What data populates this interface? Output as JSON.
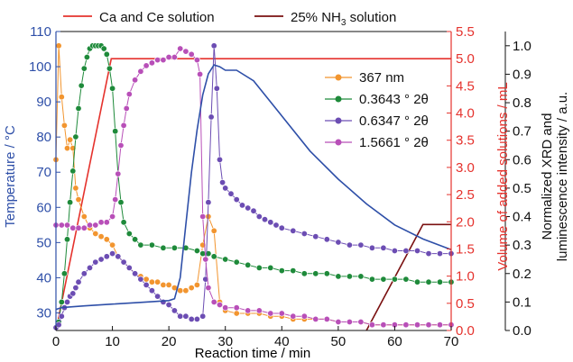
{
  "chart_data": {
    "type": "line",
    "xlabel": "Reaction time / min",
    "ylabel_left": "Temperature / °C",
    "ylabel_right1": "Volume of added solutions / mL",
    "ylabel_right2_line1": "Normalized XRD and",
    "ylabel_right2_line2": "luminescence intensity / a.u.",
    "xlim": [
      0,
      70
    ],
    "ylim_left": [
      25,
      110
    ],
    "ylim_right1": [
      0,
      5.5
    ],
    "ylim_right2": [
      0,
      1.05
    ],
    "x_ticks": [
      0,
      10,
      20,
      30,
      40,
      50,
      60,
      70
    ],
    "y_left_ticks": [
      30,
      40,
      50,
      60,
      70,
      80,
      90,
      100,
      110
    ],
    "y_right1_ticks": [
      "0.0",
      "0.5",
      "1.0",
      "1.5",
      "2.0",
      "2.5",
      "3.0",
      "3.5",
      "4.0",
      "4.5",
      "5.0",
      "5.5"
    ],
    "y_right2_ticks": [
      "0.0",
      "0.1",
      "0.2",
      "0.3",
      "0.4",
      "0.5",
      "0.6",
      "0.7",
      "0.8",
      "0.9",
      "1.0"
    ],
    "colors": {
      "temperature": "#2e4fa8",
      "volume_axis": "#e5322d",
      "ca_ce": "#e5322d",
      "nh3": "#7a1010",
      "s367": "#f2952f",
      "s03643": "#1e8a3a",
      "s06347": "#6c4db3",
      "s15661": "#b84fb8"
    },
    "top_legend": [
      {
        "label": "Ca and Ce solution",
        "color": "#e5322d"
      },
      {
        "label": "25% NH",
        "sub": "3",
        "suffix": " solution",
        "color": "#7a1010"
      }
    ],
    "marker_legend": [
      {
        "label": "367 nm",
        "color": "#f2952f"
      },
      {
        "label": "0.3643 ° 2θ",
        "color": "#1e8a3a"
      },
      {
        "label": "0.6347 ° 2θ",
        "color": "#6c4db3"
      },
      {
        "label": "1.5661 ° 2θ",
        "color": "#b84fb8"
      }
    ],
    "temperature": {
      "x": [
        0,
        1,
        5,
        10,
        15,
        20,
        21,
        22,
        23,
        24,
        25,
        26,
        27,
        28,
        29,
        30,
        32,
        35,
        40,
        45,
        50,
        55,
        60,
        65,
        70
      ],
      "y": [
        31,
        31.5,
        32,
        32.5,
        33,
        33.5,
        34,
        40,
        55,
        70,
        82,
        92,
        98,
        100.5,
        100,
        99,
        99,
        96,
        86,
        76,
        68,
        61,
        55,
        51,
        48
      ]
    },
    "ca_ce_volume": {
      "x": [
        0,
        9.8,
        70
      ],
      "y": [
        0,
        5.0,
        5.0
      ]
    },
    "nh3_volume": {
      "x": [
        55,
        65,
        70
      ],
      "y": [
        0,
        1.95,
        1.95
      ]
    },
    "series": [
      {
        "name": "367 nm",
        "x": [
          0,
          0.5,
          1,
          1.5,
          2,
          2.5,
          3,
          3.5,
          4,
          5,
          6,
          7,
          8,
          9,
          10,
          11,
          12,
          13,
          14,
          15,
          16,
          17,
          18,
          19,
          20,
          21,
          22,
          23,
          24,
          25,
          26,
          27,
          28,
          29,
          30,
          32,
          34,
          36,
          38,
          40,
          42,
          44,
          46,
          48,
          50,
          52,
          54,
          56,
          58,
          60,
          62,
          64,
          66,
          68,
          70
        ],
        "y": [
          0.6,
          1.0,
          0.82,
          0.72,
          0.64,
          0.67,
          0.64,
          0.5,
          0.46,
          0.4,
          0.36,
          0.34,
          0.33,
          0.32,
          0.3,
          0.26,
          0.24,
          0.22,
          0.2,
          0.19,
          0.18,
          0.17,
          0.17,
          0.16,
          0.16,
          0.15,
          0.14,
          0.14,
          0.15,
          0.16,
          0.3,
          0.4,
          0.35,
          0.1,
          0.07,
          0.06,
          0.06,
          0.06,
          0.05,
          0.05,
          0.04,
          0.04,
          0.04,
          0.04,
          0.03,
          0.03,
          0.03,
          0.02,
          0.02,
          0.02,
          0.02,
          0.02,
          0.02,
          0.02,
          0.02
        ]
      },
      {
        "name": "0.3643 ° 2θ",
        "x": [
          0,
          0.5,
          1,
          1.5,
          2,
          2.5,
          3,
          3.5,
          4,
          4.5,
          5,
          5.5,
          6,
          6.5,
          7,
          7.5,
          8,
          8.5,
          9,
          9.5,
          10,
          10.5,
          11,
          11.5,
          12,
          13,
          14,
          15,
          17,
          19,
          21,
          23,
          25,
          26,
          27,
          28,
          30,
          32,
          34,
          36,
          38,
          40,
          42,
          44,
          46,
          48,
          50,
          52,
          54,
          56,
          58,
          60,
          62,
          64,
          66,
          68,
          70
        ],
        "y": [
          0.01,
          0.03,
          0.1,
          0.2,
          0.32,
          0.45,
          0.56,
          0.68,
          0.78,
          0.86,
          0.92,
          0.96,
          0.99,
          1.0,
          1.0,
          1.0,
          1.0,
          0.99,
          0.97,
          0.92,
          0.85,
          0.7,
          0.55,
          0.45,
          0.38,
          0.34,
          0.32,
          0.3,
          0.3,
          0.29,
          0.29,
          0.29,
          0.28,
          0.27,
          0.27,
          0.26,
          0.25,
          0.24,
          0.23,
          0.22,
          0.22,
          0.21,
          0.21,
          0.2,
          0.2,
          0.2,
          0.19,
          0.19,
          0.19,
          0.18,
          0.18,
          0.18,
          0.18,
          0.17,
          0.17,
          0.17,
          0.17
        ]
      },
      {
        "name": "0.6347 ° 2θ",
        "x": [
          0,
          0.5,
          1,
          1.5,
          2,
          2.5,
          3,
          3.5,
          4,
          5,
          6,
          7,
          8,
          9,
          10,
          11,
          12,
          13,
          14,
          15,
          16,
          17,
          18,
          19,
          20,
          21,
          22,
          23,
          24,
          25,
          26,
          26.5,
          27,
          27.5,
          28,
          28.5,
          29,
          29.5,
          30,
          31,
          32,
          33,
          34,
          35,
          36,
          37,
          38,
          39,
          40,
          42,
          44,
          46,
          48,
          50,
          52,
          54,
          56,
          58,
          60,
          62,
          64,
          66,
          68,
          70
        ],
        "y": [
          0.01,
          0.02,
          0.05,
          0.08,
          0.1,
          0.12,
          0.13,
          0.15,
          0.17,
          0.2,
          0.22,
          0.24,
          0.25,
          0.26,
          0.27,
          0.26,
          0.24,
          0.22,
          0.2,
          0.18,
          0.16,
          0.14,
          0.12,
          0.1,
          0.09,
          0.07,
          0.05,
          0.05,
          0.04,
          0.04,
          0.05,
          0.18,
          0.45,
          0.75,
          1.0,
          0.85,
          0.6,
          0.52,
          0.5,
          0.48,
          0.46,
          0.44,
          0.43,
          0.42,
          0.4,
          0.39,
          0.38,
          0.37,
          0.36,
          0.35,
          0.34,
          0.33,
          0.32,
          0.31,
          0.3,
          0.3,
          0.29,
          0.29,
          0.28,
          0.28,
          0.28,
          0.27,
          0.27,
          0.27
        ]
      },
      {
        "name": "1.5661 ° 2θ",
        "x": [
          0,
          1,
          2,
          3,
          4,
          5,
          6,
          7,
          8,
          9,
          10,
          10.5,
          11,
          11.5,
          12,
          12.5,
          13,
          14,
          15,
          16,
          17,
          18,
          19,
          20,
          21,
          22,
          23,
          24,
          25,
          25.5,
          26,
          26.5,
          27,
          28,
          29,
          30,
          32,
          34,
          36,
          38,
          40,
          42,
          44,
          46,
          48,
          50,
          52,
          54,
          56,
          58,
          60,
          62,
          64,
          66,
          68,
          70
        ],
        "y": [
          0.37,
          0.37,
          0.37,
          0.36,
          0.36,
          0.36,
          0.37,
          0.37,
          0.38,
          0.38,
          0.4,
          0.46,
          0.55,
          0.65,
          0.72,
          0.78,
          0.83,
          0.88,
          0.91,
          0.93,
          0.94,
          0.95,
          0.95,
          0.96,
          0.96,
          0.99,
          0.98,
          0.97,
          0.95,
          0.9,
          0.4,
          0.25,
          0.15,
          0.1,
          0.09,
          0.08,
          0.08,
          0.07,
          0.07,
          0.06,
          0.06,
          0.05,
          0.05,
          0.04,
          0.04,
          0.03,
          0.03,
          0.03,
          0.02,
          0.02,
          0.02,
          0.02,
          0.02,
          0.02,
          0.02,
          0.02
        ]
      }
    ]
  }
}
